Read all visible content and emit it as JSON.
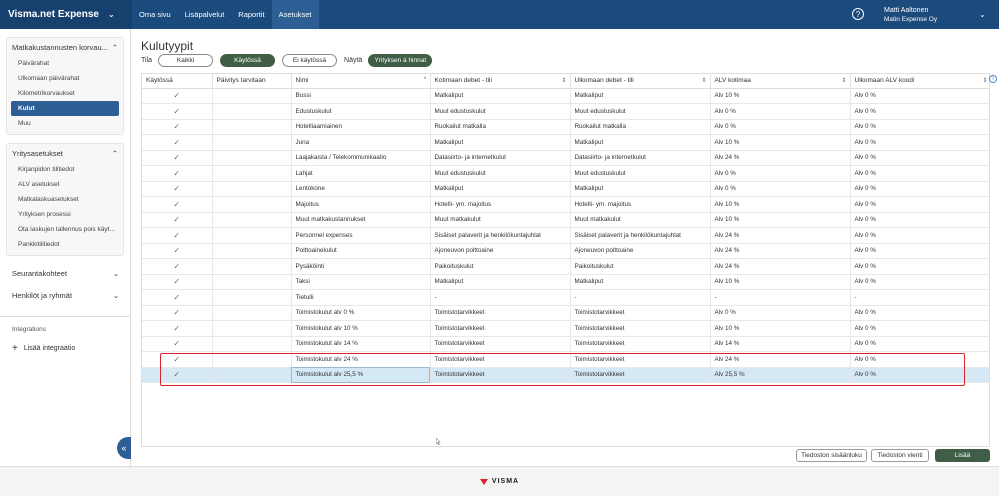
{
  "app": {
    "brand": "Visma.net Expense"
  },
  "nav": {
    "tabs": [
      "Oma sivu",
      "Lisäpalvelut",
      "Raportit",
      "Asetukset"
    ],
    "active_index": 3
  },
  "user": {
    "name": "Matti Aaltonen",
    "company": "Matin Expense Oy"
  },
  "sidebar": {
    "group1": {
      "title": "Matkakustannusten korvau...",
      "items": [
        "Päivärahat",
        "Ulkomaan päivärahat",
        "Kilometrikorvaukset",
        "Kulut",
        "Muu"
      ],
      "active_index": 3
    },
    "group2": {
      "title": "Yritysasetukset",
      "items": [
        "Kirjanpidon tilitiedot",
        "ALV asetukset",
        "Matkalaskuasetukset",
        "Yrityksen prosessi",
        "Ota laskujen tallennus pois käyt...",
        "Pankkitilitiedot"
      ]
    },
    "collapsed": [
      "Seurantakohteet",
      "Henkilöt ja ryhmät"
    ],
    "integrations_title": "Integrations",
    "add_integration": "Lisää integraatio"
  },
  "page": {
    "title": "Kulutyypit",
    "filter_label": "Tila",
    "filter_options": [
      "Kaikki",
      "Käytössä",
      "Ei käytössä"
    ],
    "filter_active_index": 1,
    "show_label": "Näytä",
    "show_option": "Yrityksen á hinnat"
  },
  "table": {
    "columns": [
      "Käytössä",
      "Päivitys tarvitaan",
      "Nimi",
      "Kotimaan debet - tili",
      "Ulkomaan debet - tili",
      "ALV kotimaa",
      "Ulkomaan ALV koodi"
    ],
    "rows": [
      [
        "✓",
        "",
        "Bussi",
        "Matkaliput",
        "Matkaliput",
        "Alv 10 %",
        "Alv 0 %"
      ],
      [
        "✓",
        "",
        "Edustuskulut",
        "Muut edustuskulut",
        "Muut edustuskulut",
        "Alv 0 %",
        "Alv 0 %"
      ],
      [
        "✓",
        "",
        "Hotelliaamiainen",
        "Ruokailut matkalla",
        "Ruokailut matkalla",
        "Alv 0 %",
        "Alv 0 %"
      ],
      [
        "✓",
        "",
        "Juna",
        "Matkaliput",
        "Matkaliput",
        "Alv 10 %",
        "Alv 0 %"
      ],
      [
        "✓",
        "",
        "Laajakaista / Telekommunikaatio",
        "Datasiirto- ja internetkulut",
        "Datasiirto- ja internetkulut",
        "Alv 24 %",
        "Alv 0 %"
      ],
      [
        "✓",
        "",
        "Lahjat",
        "Muut edustuskulut",
        "Muut edustuskulut",
        "Alv 0 %",
        "Alv 0 %"
      ],
      [
        "✓",
        "",
        "Lentokone",
        "Matkaliput",
        "Matkaliput",
        "Alv 0 %",
        "Alv 0 %"
      ],
      [
        "✓",
        "",
        "Majoitus",
        "Hotelli- ym. majoitus",
        "Hotelli- ym. majoitus",
        "Alv 10 %",
        "Alv 0 %"
      ],
      [
        "✓",
        "",
        "Muut matkakustannukset",
        "Muut matkakulut",
        "Muut matkakulut",
        "Alv 10 %",
        "Alv 0 %"
      ],
      [
        "✓",
        "",
        "Personnel expenses",
        "Sisäiset palaverit ja henkilökuntajuhlat",
        "Sisäiset palaverit ja henkilökuntajuhlat",
        "Alv 24 %",
        "Alv 0 %"
      ],
      [
        "✓",
        "",
        "Polttoainekulut",
        "Ajoneuvon polttoaine",
        "Ajoneuvon polttoaine",
        "Alv 24 %",
        "Alv 0 %"
      ],
      [
        "✓",
        "",
        "Pysäköinti",
        "Paikoituskulut",
        "Paikoituskulut",
        "Alv 24 %",
        "Alv 0 %"
      ],
      [
        "✓",
        "",
        "Taksi",
        "Matkaliput",
        "Matkaliput",
        "Alv 10 %",
        "Alv 0 %"
      ],
      [
        "✓",
        "",
        "Tietulli",
        "-",
        "-",
        "-",
        "-"
      ],
      [
        "✓",
        "",
        "Toimistokulut alv 0 %",
        "Toimistotarvikkeet",
        "Toimistotarvikkeet",
        "Alv 0 %",
        "Alv 0 %"
      ],
      [
        "✓",
        "",
        "Toimistokulut alv 10 %",
        "Toimistotarvikkeet",
        "Toimistotarvikkeet",
        "Alv 10 %",
        "Alv 0 %"
      ],
      [
        "✓",
        "",
        "Toimistokulut alv 14 %",
        "Toimistotarvikkeet",
        "Toimistotarvikkeet",
        "Alv 14 %",
        "Alv 0 %"
      ],
      [
        "✓",
        "",
        "Toimistokulut alv 24 %",
        "Toimistotarvikkeet",
        "Toimistotarvikkeet",
        "Alv 24 %",
        "Alv 0 %"
      ],
      [
        "✓",
        "",
        "Toimistokulut alv 25,5 %",
        "Toimistotarvikkeet",
        "Toimistotarvikkeet",
        "Alv 25,5 %",
        "Alv 0 %"
      ]
    ],
    "selected_row_index": 18
  },
  "buttons": {
    "import": "Tiedoston sisäänluku",
    "export": "Tiedoston vienti",
    "add": "Lisää"
  },
  "footer": {
    "logo": "VISMA"
  },
  "colors": {
    "topbar": "#1b4a7c",
    "accent_green": "#3f5e45",
    "highlight_red": "#d9232d",
    "selected_row": "#d5e8f5"
  }
}
